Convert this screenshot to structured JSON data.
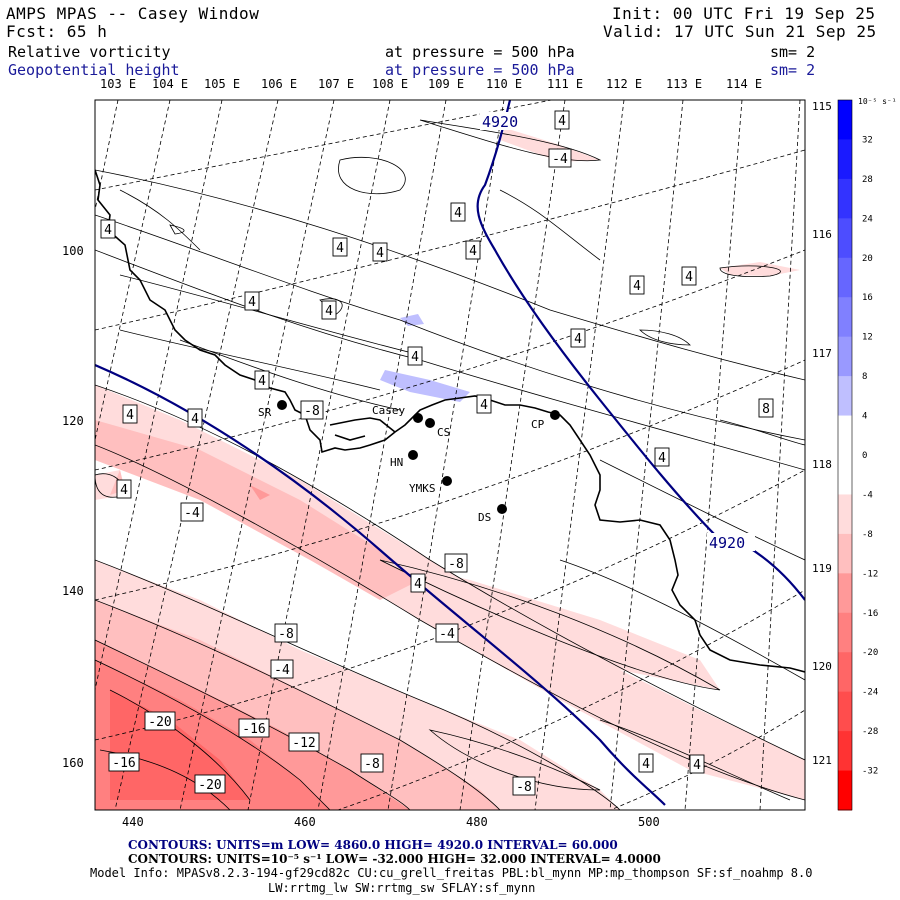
{
  "header": {
    "model": "AMPS MPAS -- Casey Window",
    "init": "Init: 00 UTC Fri 19 Sep 25",
    "fcst": "Fcst:   65 h",
    "valid": "Valid: 17 UTC Sun 21 Sep 25",
    "field1": "Relative vorticity",
    "field1_level": "at pressure =  500 hPa",
    "field1_sm": "sm= 2",
    "field2": "Geopotential height",
    "field2_level": "at pressure =  500 hPa",
    "field2_sm": "sm= 2"
  },
  "axes": {
    "lon_labels": [
      "103 E",
      "104 E",
      "105 E",
      "106 E",
      "107 E",
      "108 E",
      "109 E",
      "110 E",
      "111 E",
      "112 E",
      "113 E",
      "114 E"
    ],
    "right_lon_labels": [
      "115 E",
      "116 E",
      "117 E",
      "118 E",
      "119 E",
      "120 E",
      "121 E"
    ],
    "x_ticks": [
      "440",
      "460",
      "480",
      "500"
    ],
    "y_ticks": [
      "100",
      "120",
      "140",
      "160"
    ]
  },
  "colorbar": {
    "unit": "10⁻⁵ s⁻¹",
    "ticks": [
      "32",
      "28",
      "24",
      "20",
      "16",
      "12",
      "8",
      "4",
      "0",
      "-4",
      "-8",
      "-12",
      "-16",
      "-20",
      "-24",
      "-28",
      "-32"
    ],
    "colors": [
      "#0000ff",
      "#1a1aff",
      "#3333ff",
      "#4d4dff",
      "#6666ff",
      "#8080ff",
      "#9999ff",
      "#bfbfff",
      "#ffffff",
      "#ffffff",
      "#ffdcdc",
      "#ffbfbf",
      "#ff9999",
      "#ff8080",
      "#ff6666",
      "#ff4d4d",
      "#ff3333",
      "#ff0000"
    ]
  },
  "stations": [
    {
      "id": "SR",
      "label": "SR"
    },
    {
      "id": "casey",
      "label": "Casey"
    },
    {
      "id": "cs",
      "label": "CS"
    },
    {
      "id": "cp",
      "label": "CP"
    },
    {
      "id": "hn",
      "label": "HN"
    },
    {
      "id": "ymks",
      "label": "YMKS"
    },
    {
      "id": "ds",
      "label": "DS"
    }
  ],
  "height_labels": [
    "4920",
    "4920"
  ],
  "vorticity_labels": [
    "4",
    "-4",
    "4",
    "4",
    "4",
    "4",
    "4",
    "4",
    "4",
    "4",
    "4",
    "4",
    "4",
    "4",
    "8",
    "4",
    "-8",
    "4",
    "4",
    "4",
    "4",
    "-4",
    "-8",
    "4",
    "-4",
    "-8",
    "-4",
    "-20",
    "-16",
    "-12",
    "-8",
    "-16",
    "-20",
    "-8",
    "4",
    "4"
  ],
  "footer": {
    "contours1": "CONTOURS:  UNITS=m  LOW=  4860.0         HIGH=  4920.0        INTERVAL=   60.000",
    "contours2": "CONTOURS:  UNITS=10⁻⁵ s⁻¹  LOW= -32.000       HIGH=  32.000      INTERVAL=   4.0000",
    "model_info": "Model Info: MPASv8.2.3-194-gf29cd82c CU:cu_grell_freitas PBL:bl_mynn MP:mp_thompson SF:sf_noahmp 8.0",
    "model_info2": "LW:rrtmg_lw SW:rrtmg_sw SFLAY:sf_mynn"
  }
}
